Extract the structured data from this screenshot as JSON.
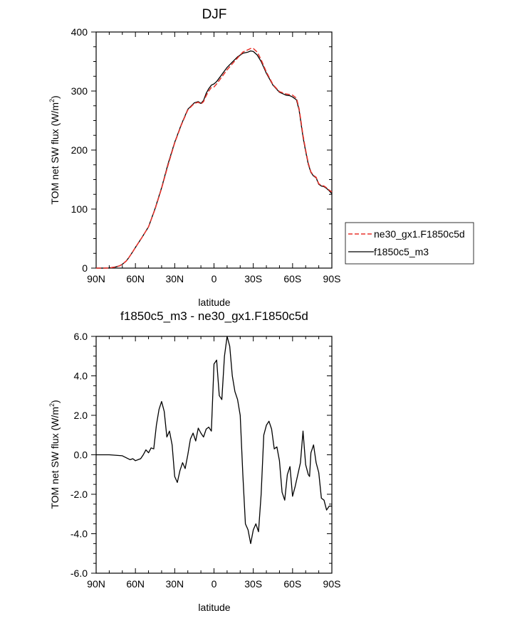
{
  "colors": {
    "model": "#000000",
    "control": "#e8322b",
    "axis": "#000000",
    "background": "#ffffff"
  },
  "chart_data": [
    {
      "type": "line",
      "title": "DJF",
      "xlabel": "latitude",
      "ylabel": "TOM net SW flux (W/m",
      "ylabel_sup": "2",
      "ylabel_close": ")",
      "xlim": [
        90,
        -90
      ],
      "ylim": [
        0,
        400
      ],
      "xticks": [
        90,
        60,
        30,
        0,
        -30,
        -60,
        -90
      ],
      "xtick_labels": [
        "90N",
        "60N",
        "30N",
        "0",
        "30S",
        "60S",
        "90S"
      ],
      "yticks": [
        0,
        100,
        200,
        300,
        400
      ],
      "ytick_labels": [
        "0",
        "100",
        "200",
        "300",
        "400"
      ],
      "legend": {
        "position": "right",
        "entries": [
          "ne30_gx1.F1850c5d",
          "f1850c5_m3"
        ]
      },
      "x": [
        90,
        85,
        80,
        75,
        72,
        70,
        67,
        65,
        62,
        60,
        55,
        50,
        45,
        40,
        35,
        30,
        25,
        20,
        15,
        12,
        10,
        8,
        6,
        4,
        2,
        0,
        -2,
        -5,
        -8,
        -10,
        -14,
        -18,
        -22,
        -26,
        -28,
        -30,
        -33,
        -36,
        -40,
        -45,
        -50,
        -55,
        -58,
        -60,
        -63,
        -65,
        -66,
        -68,
        -70,
        -72,
        -74,
        -76,
        -78,
        -80,
        -82,
        -84,
        -86,
        -88,
        -90
      ],
      "series": [
        {
          "name": "ne30_gx1.F1850c5d",
          "style": "dashed",
          "values": [
            0,
            0,
            0.3,
            2,
            4,
            6.5,
            12,
            18,
            28,
            35,
            52,
            70,
            100,
            135,
            175,
            212,
            242,
            268,
            279,
            281,
            278,
            282,
            292,
            300,
            306,
            307,
            312,
            321,
            330,
            336,
            346,
            356,
            366,
            370,
            372,
            372,
            366,
            353,
            332,
            311,
            299,
            295,
            294,
            293,
            288,
            270,
            255,
            225,
            200,
            178,
            163,
            157,
            154,
            143,
            140,
            139,
            136,
            132,
            129
          ]
        },
        {
          "name": "f1850c5_m3",
          "style": "solid",
          "values": [
            0,
            0,
            0.3,
            2,
            4,
            6.5,
            12,
            18,
            28,
            35,
            52,
            70,
            101,
            136,
            177,
            213,
            243,
            269,
            280,
            282,
            279,
            284,
            296,
            304,
            310,
            312,
            316,
            325,
            334,
            340,
            349,
            358,
            364,
            366,
            368,
            367,
            361,
            350,
            330,
            310,
            298,
            293,
            292,
            290,
            285,
            268,
            252,
            222,
            198,
            176,
            162,
            156,
            153,
            142,
            139,
            138,
            135,
            131,
            126
          ]
        }
      ]
    },
    {
      "type": "line",
      "title": "f1850c5_m3 - ne30_gx1.F1850c5d",
      "xlabel": "latitude",
      "ylabel": "TOM net SW flux (W/m",
      "ylabel_sup": "2",
      "ylabel_close": ")",
      "xlim": [
        90,
        -90
      ],
      "ylim": [
        -6,
        6
      ],
      "xticks": [
        90,
        60,
        30,
        0,
        -30,
        -60,
        -90
      ],
      "xtick_labels": [
        "90N",
        "60N",
        "30N",
        "0",
        "30S",
        "60S",
        "90S"
      ],
      "yticks": [
        -6,
        -4,
        -2,
        0,
        2,
        4,
        6
      ],
      "ytick_labels": [
        "-6.0",
        "-4.0",
        "-2.0",
        "0.0",
        "2.0",
        "4.0",
        "6.0"
      ],
      "x": [
        90,
        80,
        70,
        67,
        64,
        62,
        60,
        58,
        56,
        54,
        52,
        50,
        48,
        46,
        44,
        42,
        40,
        38,
        36,
        34,
        32,
        30,
        28,
        26,
        24,
        22,
        20,
        18,
        16,
        14,
        12,
        10,
        8,
        6,
        4,
        2,
        0,
        -2,
        -4,
        -6,
        -8,
        -10,
        -12,
        -14,
        -16,
        -18,
        -20,
        -22,
        -24,
        -26,
        -28,
        -30,
        -32,
        -34,
        -36,
        -38,
        -40,
        -42,
        -44,
        -46,
        -48,
        -50,
        -52,
        -54,
        -56,
        -58,
        -60,
        -62,
        -64,
        -66,
        -68,
        -70,
        -72,
        -73,
        -74,
        -76,
        -78,
        -80,
        -82,
        -84,
        -86,
        -88,
        -90
      ],
      "series": [
        {
          "name": "f1850c5_m3 - ne30_gx1.F1850c5d",
          "style": "solid",
          "values": [
            0,
            0,
            -0.05,
            -0.15,
            -0.25,
            -0.2,
            -0.3,
            -0.25,
            -0.2,
            0,
            0.25,
            0.1,
            0.35,
            0.3,
            1.5,
            2.3,
            2.7,
            2.2,
            0.9,
            1.2,
            0.5,
            -1.1,
            -1.4,
            -0.8,
            -0.4,
            -0.7,
            0.0,
            0.8,
            1.1,
            0.7,
            1.35,
            1.1,
            0.9,
            1.3,
            1.4,
            1.2,
            4.6,
            4.8,
            3.0,
            2.8,
            5.0,
            6.0,
            5.5,
            4.0,
            3.2,
            2.8,
            2.0,
            -1.0,
            -3.5,
            -3.8,
            -4.5,
            -3.8,
            -3.5,
            -3.9,
            -2.0,
            1.0,
            1.5,
            1.7,
            1.3,
            0.3,
            0.4,
            -0.3,
            -1.9,
            -2.3,
            -1.0,
            -0.6,
            -2.1,
            -1.6,
            -1.0,
            -0.4,
            1.2,
            -0.5,
            -1.0,
            -1.1,
            0.1,
            0.5,
            -0.4,
            -0.9,
            -2.2,
            -2.3,
            -2.8,
            -2.6,
            -2.6
          ]
        }
      ]
    }
  ]
}
